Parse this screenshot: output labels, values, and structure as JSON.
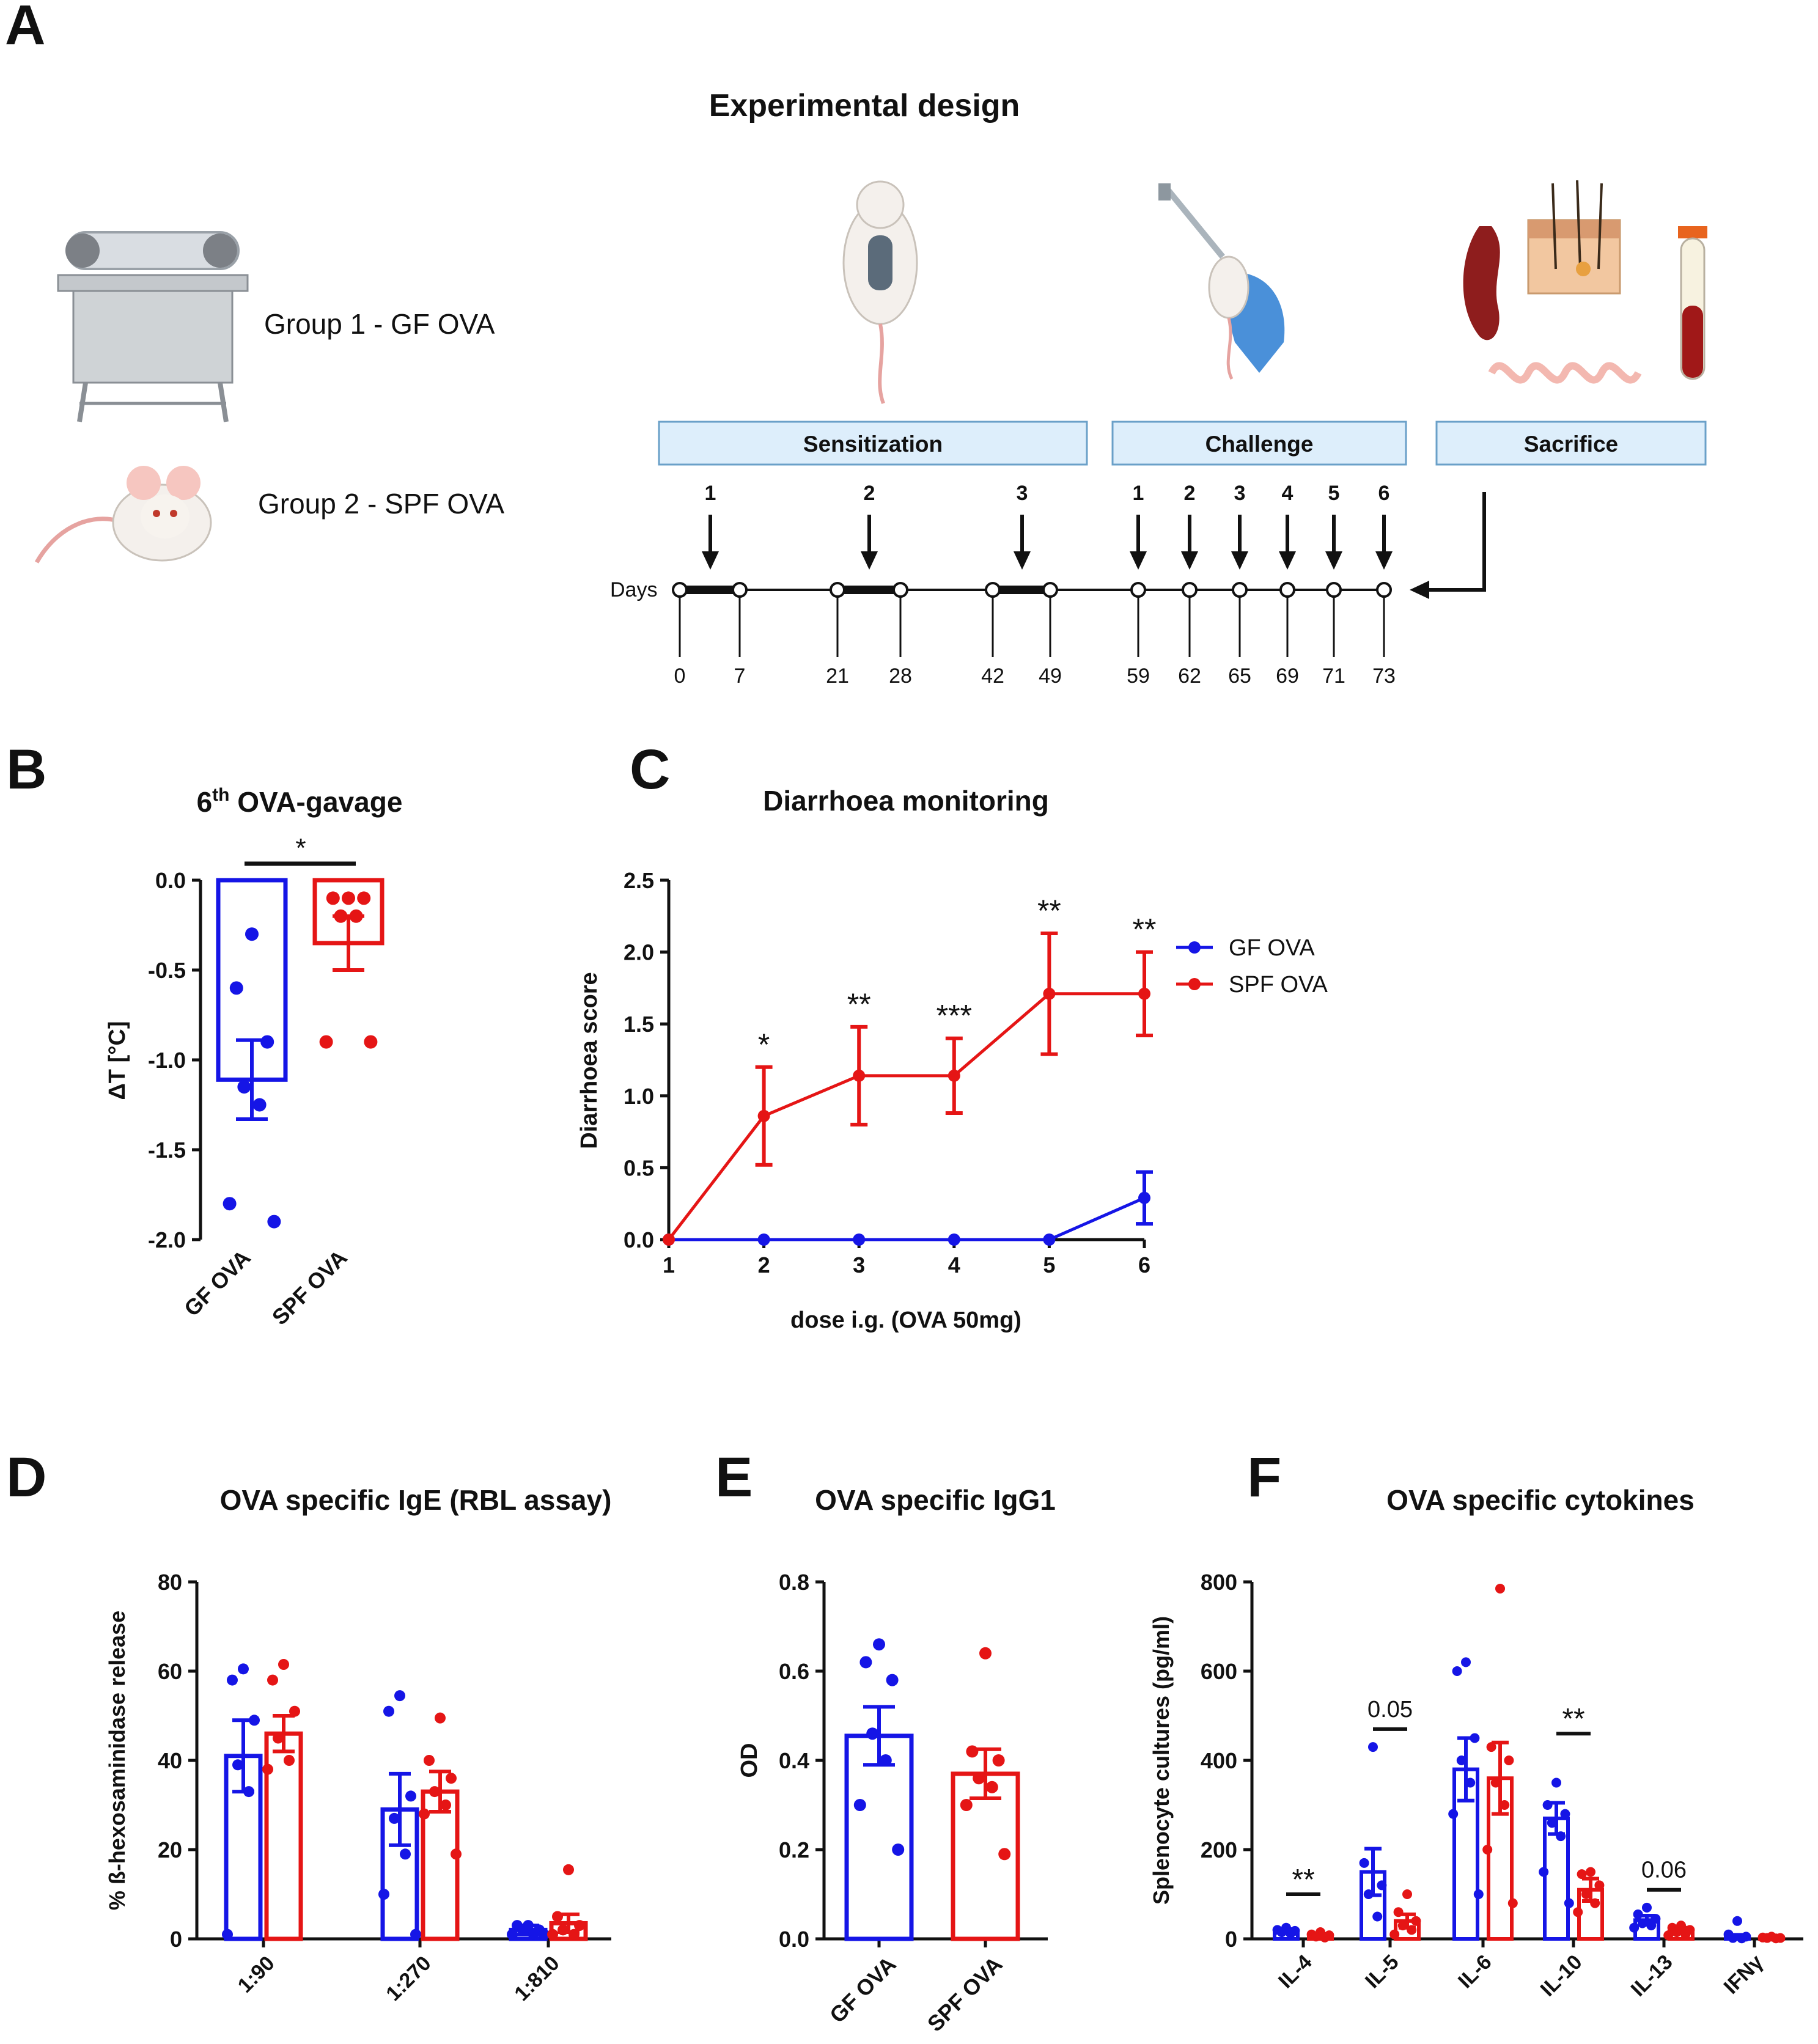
{
  "colors": {
    "gf": "#1515e6",
    "spf": "#e51515",
    "box_fill": "#ddeefb",
    "box_stroke": "#6aa0c8",
    "ink": "#111111"
  },
  "panelA": {
    "letter": "A",
    "title": "Experimental design",
    "group1": "Group 1 - GF OVA",
    "group2": "Group 2 - SPF OVA",
    "phases": [
      "Sensitization",
      "Challenge",
      "Sacrifice"
    ],
    "days_label": "Days",
    "sens_arrow_labels": [
      "1",
      "2",
      "3"
    ],
    "chal_arrow_labels": [
      "1",
      "2",
      "3",
      "4",
      "5",
      "6"
    ],
    "days": [
      "0",
      "7",
      "21",
      "28",
      "42",
      "49",
      "59",
      "62",
      "65",
      "69",
      "71",
      "73"
    ],
    "icons": [
      "isolator-icon",
      "mouse-icon",
      "sensitized-mouse-icon",
      "injection-icon",
      "spleen-icon",
      "skin-icon",
      "intestine-icon",
      "blood-tube-icon"
    ]
  },
  "chart_data": [
    {
      "panel": "B",
      "letter": "B",
      "type": "bar",
      "title_base": "6",
      "title_sup": "th",
      "title_rest": " OVA-gavage",
      "categories": [
        "GF OVA",
        "SPF OVA"
      ],
      "series": [
        {
          "name": "GF OVA",
          "color": "#1515e6",
          "mean": -1.11,
          "sem": 0.22,
          "points": [
            -0.3,
            -0.6,
            -0.9,
            -1.15,
            -1.25,
            -1.8,
            -1.9
          ]
        },
        {
          "name": "SPF OVA",
          "color": "#e51515",
          "mean": -0.35,
          "sem": 0.15,
          "points": [
            -0.1,
            -0.1,
            -0.1,
            -0.2,
            -0.2,
            -0.9,
            -0.9
          ]
        }
      ],
      "ylabel": "ΔT [°C]",
      "ylim": [
        -2.0,
        0.0
      ],
      "yticks": [
        "0.0",
        "-0.5",
        "-1.0",
        "-1.5",
        "-2.0"
      ],
      "significance": "*"
    },
    {
      "panel": "C",
      "letter": "C",
      "type": "line",
      "title": "Diarrhoea monitoring",
      "x": [
        1,
        2,
        3,
        4,
        5,
        6
      ],
      "xticks": [
        "1",
        "2",
        "3",
        "4",
        "5",
        "6"
      ],
      "series": [
        {
          "name": "GF OVA",
          "color": "#1515e6",
          "values": [
            0,
            0,
            0,
            0,
            0,
            0.29
          ],
          "errors": [
            0,
            0,
            0,
            0,
            0,
            0.18
          ]
        },
        {
          "name": "SPF OVA",
          "color": "#e51515",
          "values": [
            0,
            0.86,
            1.14,
            1.14,
            1.71,
            1.71
          ],
          "errors": [
            0,
            0.34,
            0.34,
            0.26,
            0.42,
            0.29
          ]
        }
      ],
      "significance": [
        "",
        "*",
        "**",
        "***",
        "**",
        "**"
      ],
      "xlabel": "dose i.g. (OVA 50mg)",
      "ylabel": "Diarrhoea score",
      "ylim": [
        0,
        2.5
      ],
      "yticks": [
        "0.0",
        "0.5",
        "1.0",
        "1.5",
        "2.0",
        "2.5"
      ],
      "legend": [
        "GF OVA",
        "SPF OVA"
      ]
    },
    {
      "panel": "D",
      "letter": "D",
      "type": "bar",
      "title": "OVA specific IgE (RBL assay)",
      "categories": [
        "1:90",
        "1:270",
        "1:810"
      ],
      "series": [
        {
          "name": "GF OVA",
          "color": "#1515e6",
          "means": [
            41,
            29,
            2
          ],
          "sems": [
            8,
            8,
            1
          ],
          "points": [
            [
              60.5,
              58,
              49,
              39,
              33,
              1
            ],
            [
              54.5,
              51,
              32,
              27,
              19,
              10,
              1
            ],
            [
              3,
              3,
              2,
              2,
              1,
              1,
              1
            ]
          ]
        },
        {
          "name": "SPF OVA",
          "color": "#e51515",
          "means": [
            46,
            33,
            3.5
          ],
          "sems": [
            4,
            4.5,
            2
          ],
          "points": [
            [
              61.5,
              58,
              51,
              45,
              40,
              38
            ],
            [
              49.5,
              40,
              36,
              33,
              30,
              28,
              19
            ],
            [
              15.5,
              5,
              3,
              2,
              1,
              1
            ]
          ]
        }
      ],
      "ylabel": "% ß-hexosaminidase release",
      "ylim": [
        0,
        80
      ],
      "yticks": [
        "0",
        "20",
        "40",
        "60",
        "80"
      ]
    },
    {
      "panel": "E",
      "letter": "E",
      "type": "bar",
      "title": "OVA specific IgG1",
      "categories": [
        "GF OVA",
        "SPF OVA"
      ],
      "series": [
        {
          "name": "GF OVA",
          "color": "#1515e6",
          "mean": 0.455,
          "sem": 0.065,
          "points": [
            0.66,
            0.62,
            0.58,
            0.46,
            0.4,
            0.3,
            0.2
          ]
        },
        {
          "name": "SPF OVA",
          "color": "#e51515",
          "mean": 0.37,
          "sem": 0.055,
          "points": [
            0.64,
            0.42,
            0.4,
            0.36,
            0.34,
            0.3,
            0.19
          ]
        }
      ],
      "ylabel": "OD",
      "ylim": [
        0,
        0.8
      ],
      "yticks": [
        "0.0",
        "0.2",
        "0.4",
        "0.6",
        "0.8"
      ]
    },
    {
      "panel": "F",
      "letter": "F",
      "type": "bar",
      "title": "OVA specific cytokines",
      "categories": [
        "IL-4",
        "IL-5",
        "IL-6",
        "IL-10",
        "IL-13",
        "IFNγ"
      ],
      "series": [
        {
          "name": "GF OVA",
          "color": "#1515e6",
          "means": [
            18,
            150,
            380,
            270,
            42,
            5
          ],
          "sems": [
            4,
            52,
            70,
            35,
            10,
            4
          ],
          "points": [
            [
              25,
              20,
              18,
              15,
              12
            ],
            [
              430,
              170,
              120,
              100,
              50
            ],
            [
              620,
              600,
              450,
              400,
              350,
              280,
              100
            ],
            [
              350,
              300,
              280,
              260,
              230,
              150,
              80
            ],
            [
              70,
              55,
              45,
              35,
              30,
              25
            ],
            [
              40,
              10,
              5,
              2,
              1
            ]
          ]
        },
        {
          "name": "SPF OVA",
          "color": "#e51515",
          "means": [
            8,
            40,
            360,
            110,
            20,
            3
          ],
          "sems": [
            3,
            15,
            80,
            25,
            5,
            1
          ],
          "points": [
            [
              15,
              10,
              8,
              5,
              3
            ],
            [
              100,
              60,
              40,
              30,
              20,
              10
            ],
            [
              785,
              430,
              400,
              350,
              300,
              200,
              80
            ],
            [
              150,
              145,
              120,
              100,
              80,
              60
            ],
            [
              30,
              25,
              20,
              15,
              10,
              8
            ],
            [
              5,
              3,
              2,
              2,
              1
            ]
          ]
        }
      ],
      "annotations": [
        {
          "category": "IL-4",
          "text": "**"
        },
        {
          "category": "IL-5",
          "text": "0.05"
        },
        {
          "category": "IL-10",
          "text": "**"
        },
        {
          "category": "IL-13",
          "text": "0.06"
        }
      ],
      "ylabel": "Splenocyte cultures (pg/ml)",
      "ylim": [
        0,
        800
      ],
      "yticks": [
        "0",
        "200",
        "400",
        "600",
        "800"
      ]
    }
  ]
}
